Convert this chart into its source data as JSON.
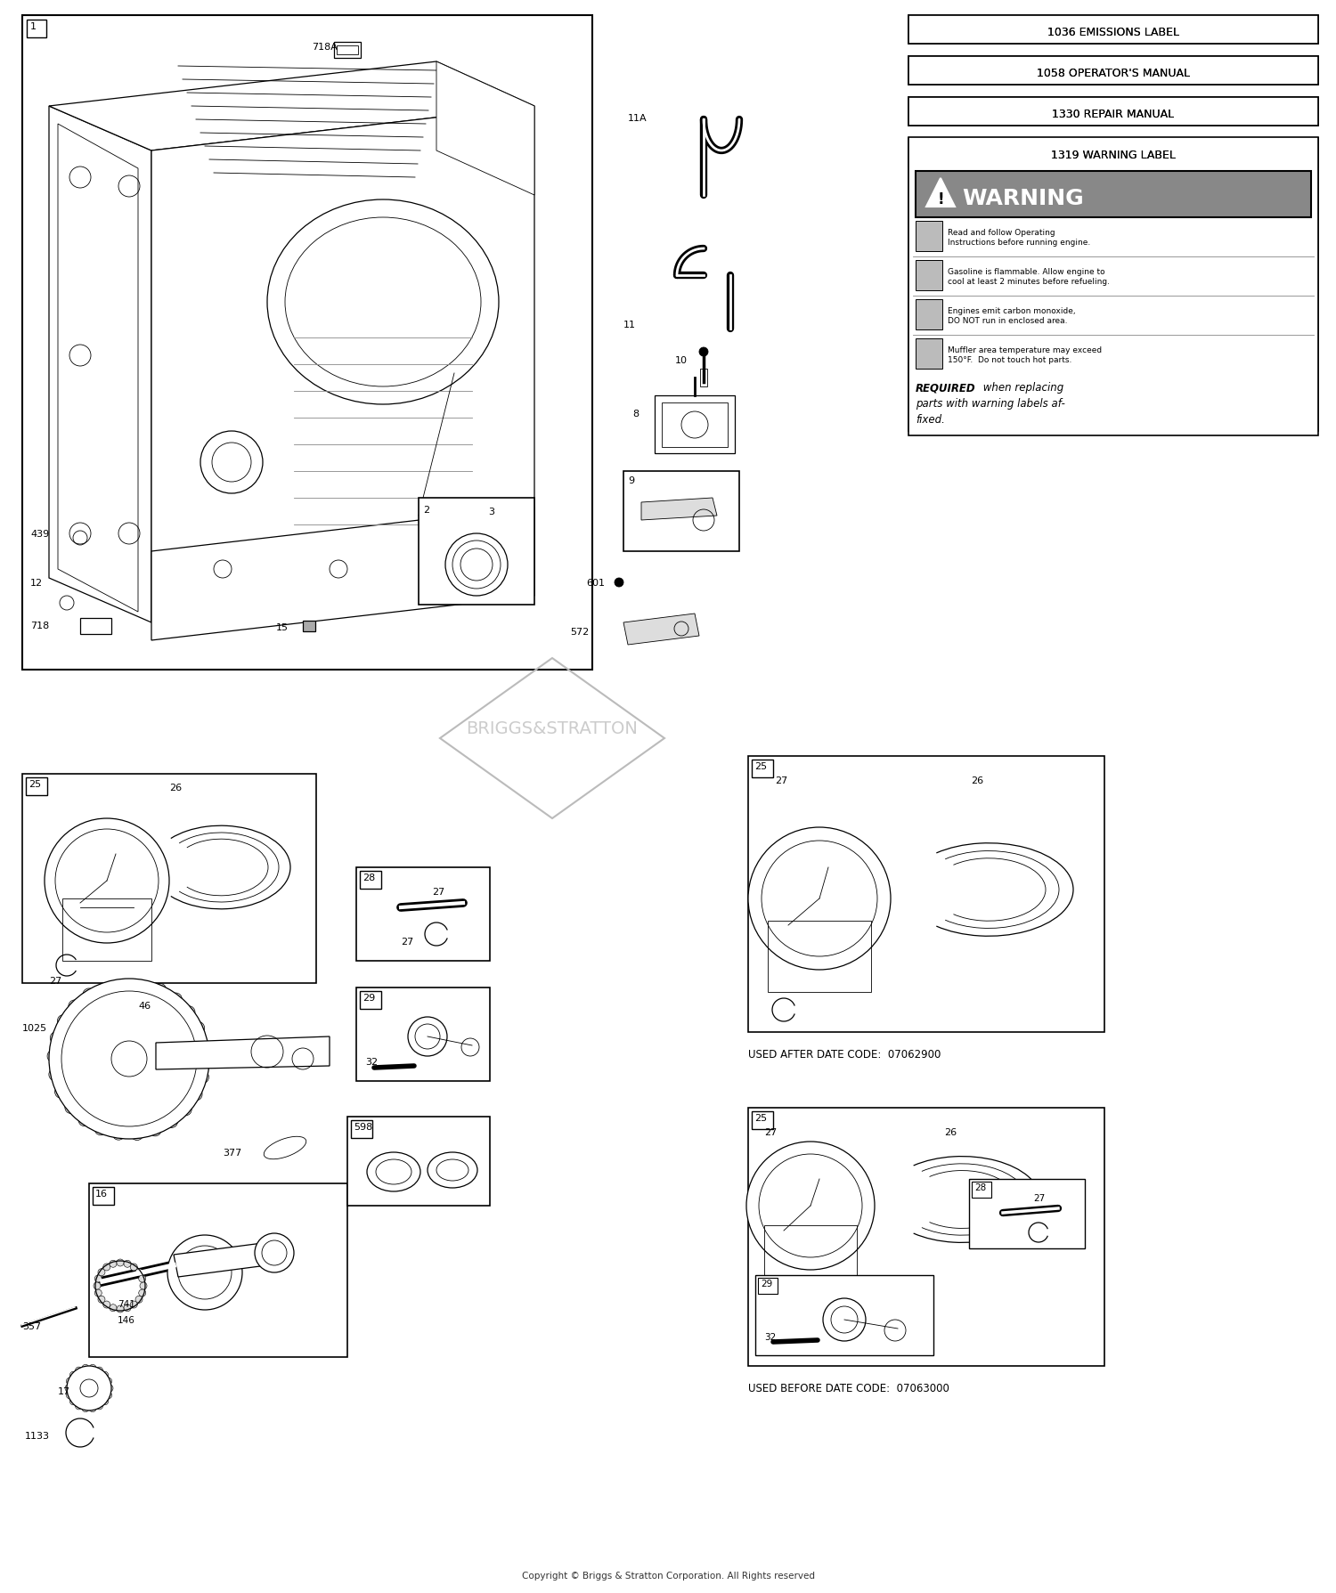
{
  "figsize": [
    15.0,
    17.9
  ],
  "dpi": 100,
  "bg_color": "#ffffff",
  "line_color": "#000000",
  "gray_light": "#cccccc",
  "gray_med": "#999999",
  "gray_dark": "#555555",
  "warning_header_bg": "#888888",
  "info_boxes": [
    "1036 EMISSIONS LABEL",
    "1058 OPERATOR'S MANUAL",
    "1330 REPAIR MANUAL",
    "1319 WARNING LABEL"
  ],
  "warning_lines": [
    "Read and follow Operating\nInstructions before running engine.",
    "Gasoline is flammable. Allow engine to\ncool at least 2 minutes before refueling.",
    "Engines emit carbon monoxide,\nDO NOT run in enclosed area.",
    "Muffler area temperature may exceed\n150°F.  Do not touch hot parts."
  ],
  "copyright": "Copyright © Briggs & Stratton Corporation. All Rights reserved",
  "brand": "BRIGGS&STRATTON",
  "used_after": "USED AFTER DATE CODE:  07062900",
  "used_before": "USED BEFORE DATE CODE:  07063000"
}
